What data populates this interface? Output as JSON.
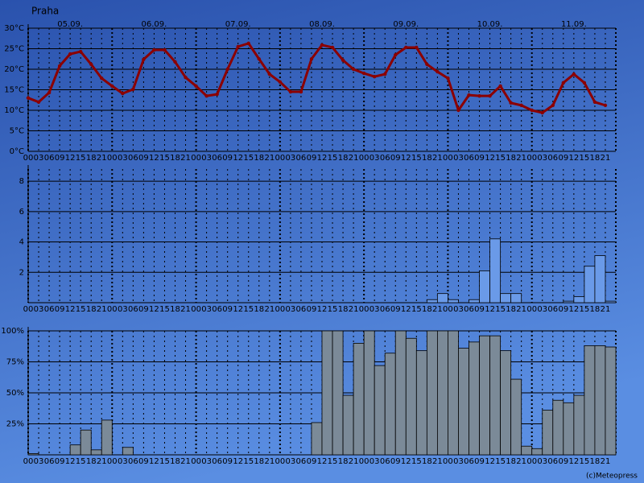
{
  "header": {
    "title": "Praha"
  },
  "footer": {
    "credit": "(c)Meteopress"
  },
  "chart_data": [
    {
      "type": "line",
      "color": "#8b0000",
      "days": [
        "05.09.",
        "06.09.",
        "07.09.",
        "08.09.",
        "09.09.",
        "10.09.",
        "11.09."
      ],
      "categories": [
        "00",
        "03",
        "06",
        "09",
        "12",
        "15",
        "18",
        "21",
        "00",
        "03",
        "06",
        "09",
        "12",
        "15",
        "18",
        "21",
        "00",
        "03",
        "06",
        "09",
        "12",
        "15",
        "18",
        "21",
        "00",
        "03",
        "06",
        "09",
        "12",
        "15",
        "18",
        "21",
        "00",
        "03",
        "06",
        "09",
        "12",
        "15",
        "18",
        "21",
        "00",
        "03",
        "06",
        "09",
        "12",
        "15",
        "18",
        "21",
        "00",
        "03",
        "06",
        "09",
        "12",
        "15",
        "18",
        "21"
      ],
      "values": [
        13,
        12,
        14.3,
        20.8,
        23.7,
        24.3,
        21.2,
        17.8,
        15.9,
        14.1,
        15.1,
        22.4,
        24.7,
        24.7,
        21.8,
        18,
        15.9,
        13.5,
        13.9,
        20,
        25.5,
        26.3,
        22.5,
        18.8,
        16.9,
        14.5,
        14.5,
        22.5,
        25.9,
        25.3,
        22.2,
        20,
        19,
        18.2,
        18.8,
        23.5,
        25.3,
        25.3,
        21.2,
        19.4,
        17.8,
        10,
        13.7,
        13.5,
        13.5,
        15.9,
        11.8,
        11.2,
        10,
        9.4,
        11.2,
        16.7,
        18.8,
        16.7,
        12,
        11.2
      ],
      "ylim": [
        0,
        30
      ],
      "yticks": [
        {
          "value": 0,
          "label": "0°C"
        },
        {
          "value": 5,
          "label": "5°C"
        },
        {
          "value": 10,
          "label": "10°C"
        },
        {
          "value": 15,
          "label": "15°C"
        },
        {
          "value": 20,
          "label": "20°C"
        },
        {
          "value": 25,
          "label": "25°C"
        },
        {
          "value": 30,
          "label": "30°C"
        }
      ]
    },
    {
      "type": "bar",
      "color": "#6a9ae8",
      "categories": [
        "00",
        "03",
        "06",
        "09",
        "12",
        "15",
        "18",
        "21",
        "00",
        "03",
        "06",
        "09",
        "12",
        "15",
        "18",
        "21",
        "00",
        "03",
        "06",
        "09",
        "12",
        "15",
        "18",
        "21",
        "00",
        "03",
        "06",
        "09",
        "12",
        "15",
        "18",
        "21",
        "00",
        "03",
        "06",
        "09",
        "12",
        "15",
        "18",
        "21",
        "00",
        "03",
        "06",
        "09",
        "12",
        "15",
        "18",
        "21",
        "00",
        "03",
        "06",
        "09",
        "12",
        "15",
        "18",
        "21"
      ],
      "values": [
        0,
        0,
        0,
        0,
        0,
        0,
        0,
        0,
        0,
        0,
        0,
        0,
        0,
        0,
        0,
        0,
        0,
        0,
        0,
        0,
        0,
        0,
        0,
        0,
        0,
        0,
        0,
        0,
        0,
        0,
        0,
        0,
        0,
        0,
        0,
        0,
        0,
        0,
        0.2,
        0.6,
        0.2,
        0,
        0.2,
        2.1,
        4.2,
        0.6,
        0.6,
        0,
        0,
        0,
        0,
        0.1,
        0.4,
        2.4,
        3.1,
        0.1
      ],
      "ylim": [
        0,
        8.8
      ],
      "yticks": [
        2,
        4,
        6,
        8
      ]
    },
    {
      "type": "bar",
      "color": "#7b8a98",
      "categories": [
        "00",
        "03",
        "06",
        "09",
        "12",
        "15",
        "18",
        "21",
        "00",
        "03",
        "06",
        "09",
        "12",
        "15",
        "18",
        "21",
        "00",
        "03",
        "06",
        "09",
        "12",
        "15",
        "18",
        "21",
        "00",
        "03",
        "06",
        "09",
        "12",
        "15",
        "18",
        "21",
        "00",
        "03",
        "06",
        "09",
        "12",
        "15",
        "18",
        "21",
        "00",
        "03",
        "06",
        "09",
        "12",
        "15",
        "18",
        "21",
        "00",
        "03",
        "06",
        "09",
        "12",
        "15",
        "18",
        "21"
      ],
      "values": [
        1,
        0,
        0,
        0,
        8,
        20,
        4,
        28,
        0,
        6,
        0,
        0,
        0,
        0,
        0,
        0,
        0,
        0,
        0,
        0,
        0,
        0,
        0,
        0,
        0,
        0,
        0,
        26,
        100,
        100,
        48,
        90,
        100,
        72,
        82,
        100,
        94,
        84,
        100,
        100,
        100,
        86,
        91,
        96,
        96,
        84,
        61,
        7,
        5,
        36,
        44,
        42,
        48,
        88,
        88,
        87
      ],
      "ylim": [
        0,
        100
      ],
      "yticks": [
        {
          "value": 25,
          "label": "25%"
        },
        {
          "value": 50,
          "label": "50%"
        },
        {
          "value": 75,
          "label": "75%"
        },
        {
          "value": 100,
          "label": "100%"
        }
      ]
    }
  ]
}
